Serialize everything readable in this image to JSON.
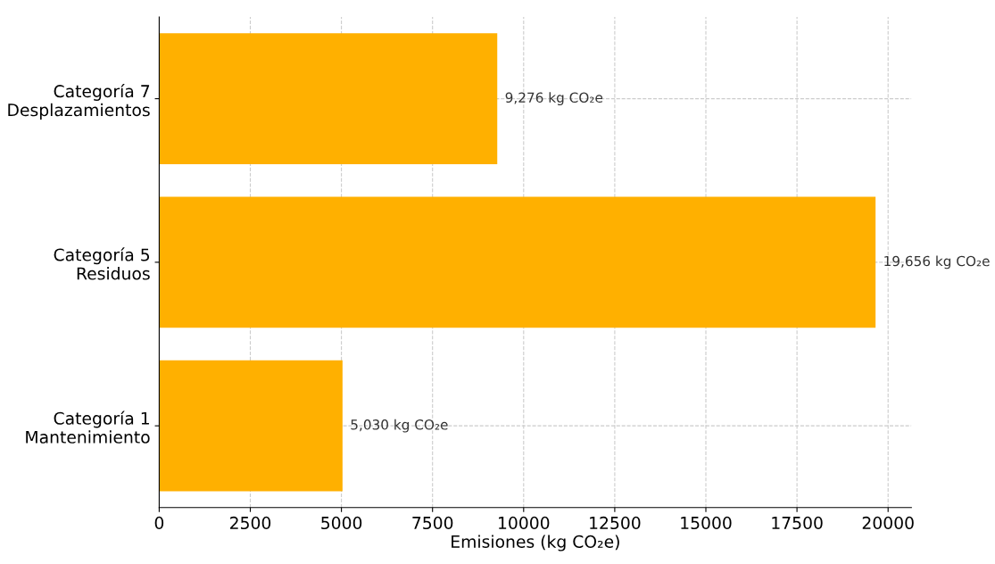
{
  "chart_data": {
    "type": "bar",
    "orientation": "horizontal",
    "xlabel": "Emisiones (kg CO₂e)",
    "categories": [
      "Categoría 7\nDesplazamientos",
      "Categoría 5\nResiduos",
      "Categoría 1\nMantenimiento"
    ],
    "values": [
      9276,
      19656,
      5030
    ],
    "color": "#ffb000",
    "value_labels": [
      "9,276 kg CO₂e",
      "19,656 kg CO₂e",
      "5,030 kg CO₂e"
    ],
    "xlim": [
      0,
      20640
    ],
    "xticks": [
      0,
      2500,
      5000,
      7500,
      10000,
      12500,
      15000,
      17500,
      20000
    ],
    "grid": true,
    "line_style": "dashed"
  }
}
